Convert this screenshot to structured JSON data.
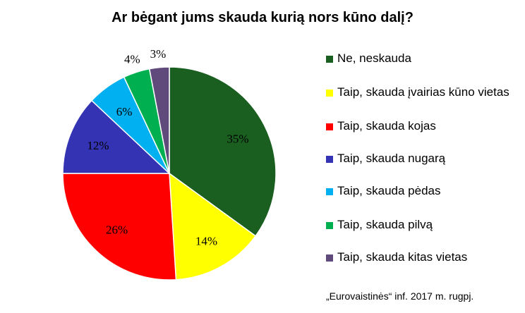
{
  "chart_data": {
    "type": "pie",
    "title": "Ar bėgant jums skauda kurią nors kūno dalį?",
    "slices": [
      {
        "label": "Ne, neskauda",
        "value": 35,
        "value_label": "35%",
        "color": "#1a5e20"
      },
      {
        "label": "Taip, skauda įvairias kūno vietas",
        "value": 14,
        "value_label": "14%",
        "color": "#ffff00"
      },
      {
        "label": "Taip, skauda kojas",
        "value": 26,
        "value_label": "26%",
        "color": "#ff0000"
      },
      {
        "label": "Taip, skauda nugarą",
        "value": 12,
        "value_label": "12%",
        "color": "#3333b3"
      },
      {
        "label": "Taip, skauda pėdas",
        "value": 6,
        "value_label": "6%",
        "color": "#00b0f0"
      },
      {
        "label": "Taip, skauda pilvą",
        "value": 4,
        "value_label": "4%",
        "color": "#00b050"
      },
      {
        "label": "Taip, skauda kitas vietas",
        "value": 3,
        "value_label": "3%",
        "color": "#604a7b"
      }
    ],
    "legend_position": "right"
  },
  "source": "„Eurovaistinės“ inf. 2017 m. rugpj."
}
